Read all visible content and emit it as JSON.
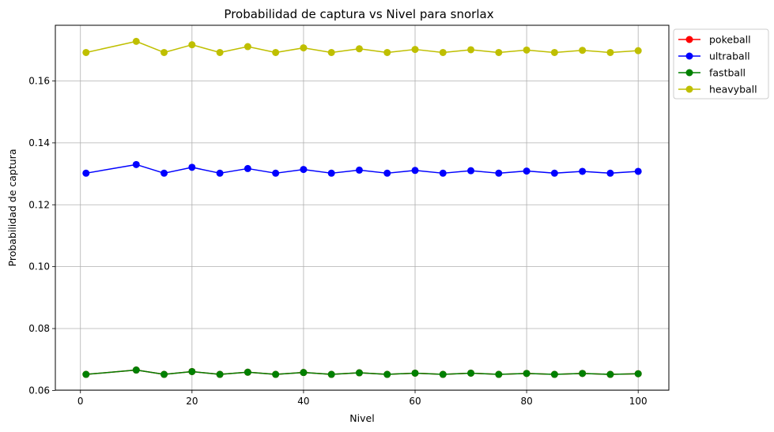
{
  "chart_data": {
    "type": "line",
    "title": "Probabilidad de captura vs Nivel para snorlax",
    "xlabel": "Nivel",
    "ylabel": "Probabilidad de captura",
    "xlim": [
      -4.5,
      105.5
    ],
    "ylim": [
      0.0601,
      0.178
    ],
    "xticks": [
      0,
      20,
      40,
      60,
      80,
      100
    ],
    "yticks": [
      0.06,
      0.08,
      0.1,
      0.12,
      0.14,
      0.16
    ],
    "ytick_labels": [
      "0.06",
      "0.08",
      "0.10",
      "0.12",
      "0.14",
      "0.16"
    ],
    "grid": true,
    "legend_position": "upper-right-outside",
    "x": [
      1,
      10,
      15,
      20,
      25,
      30,
      35,
      40,
      45,
      50,
      55,
      60,
      65,
      70,
      75,
      80,
      85,
      90,
      95,
      100
    ],
    "series": [
      {
        "name": "pokeball",
        "color": "#ff0000",
        "values": [
          0.0652,
          0.0666,
          0.0652,
          0.0661,
          0.0652,
          0.0659,
          0.0652,
          0.0658,
          0.0652,
          0.0657,
          0.0652,
          0.0656,
          0.0652,
          0.0656,
          0.0652,
          0.0655,
          0.0652,
          0.0655,
          0.0652,
          0.0654
        ]
      },
      {
        "name": "ultraball",
        "color": "#0000ff",
        "values": [
          0.1302,
          0.133,
          0.1302,
          0.1321,
          0.1302,
          0.1317,
          0.1302,
          0.1314,
          0.1302,
          0.1312,
          0.1302,
          0.1311,
          0.1302,
          0.131,
          0.1302,
          0.1309,
          0.1302,
          0.1308,
          0.1302,
          0.1308
        ]
      },
      {
        "name": "fastball",
        "color": "#008000",
        "values": [
          0.0652,
          0.0666,
          0.0652,
          0.0661,
          0.0652,
          0.0659,
          0.0652,
          0.0658,
          0.0652,
          0.0657,
          0.0652,
          0.0656,
          0.0652,
          0.0656,
          0.0652,
          0.0655,
          0.0652,
          0.0655,
          0.0652,
          0.0654
        ]
      },
      {
        "name": "heavyball",
        "color": "#bfbf00",
        "values": [
          0.1692,
          0.1728,
          0.1692,
          0.1717,
          0.1692,
          0.1711,
          0.1692,
          0.1707,
          0.1692,
          0.1704,
          0.1692,
          0.1702,
          0.1692,
          0.1701,
          0.1692,
          0.17,
          0.1692,
          0.1699,
          0.1692,
          0.1698
        ]
      }
    ]
  }
}
